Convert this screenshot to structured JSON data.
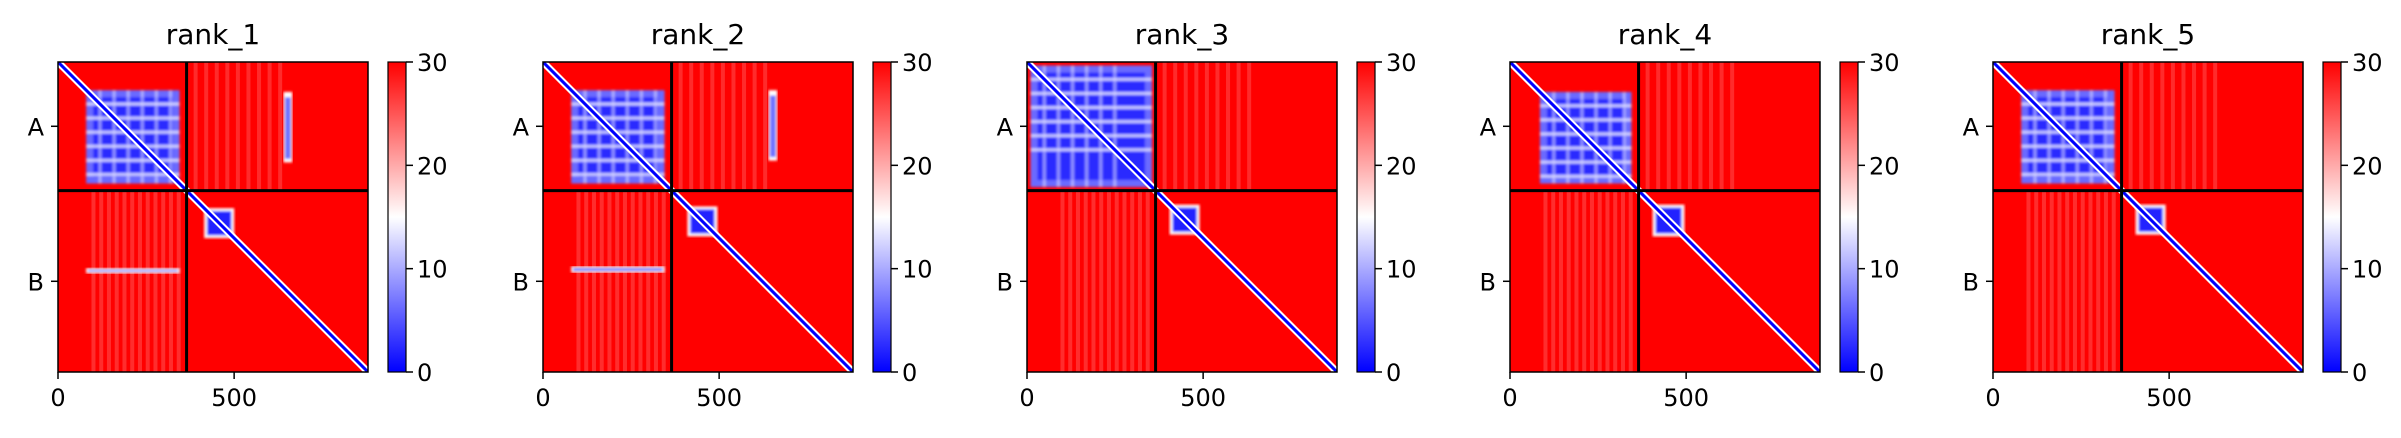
{
  "chart_data": {
    "type": "heatmap",
    "colormap": {
      "name": "bwr",
      "low": "#0000ff",
      "mid": "#ffffff",
      "high": "#ff0000"
    },
    "vmin": 0,
    "vmax": 30,
    "colorbar_ticks": [
      "0",
      "10",
      "20",
      "30"
    ],
    "x_ticks": [
      {
        "value": 0,
        "label": "0"
      },
      {
        "value": 500,
        "label": "500"
      }
    ],
    "xlim": [
      0,
      880
    ],
    "n_residues": 880,
    "chains": [
      {
        "label": "A",
        "start": 0,
        "end": 365
      },
      {
        "label": "B",
        "start": 365,
        "end": 880
      }
    ],
    "panels": [
      {
        "title": "rank_1"
      },
      {
        "title": "rank_2"
      },
      {
        "title": "rank_3"
      },
      {
        "title": "rank_4"
      },
      {
        "title": "rank_5"
      }
    ]
  }
}
